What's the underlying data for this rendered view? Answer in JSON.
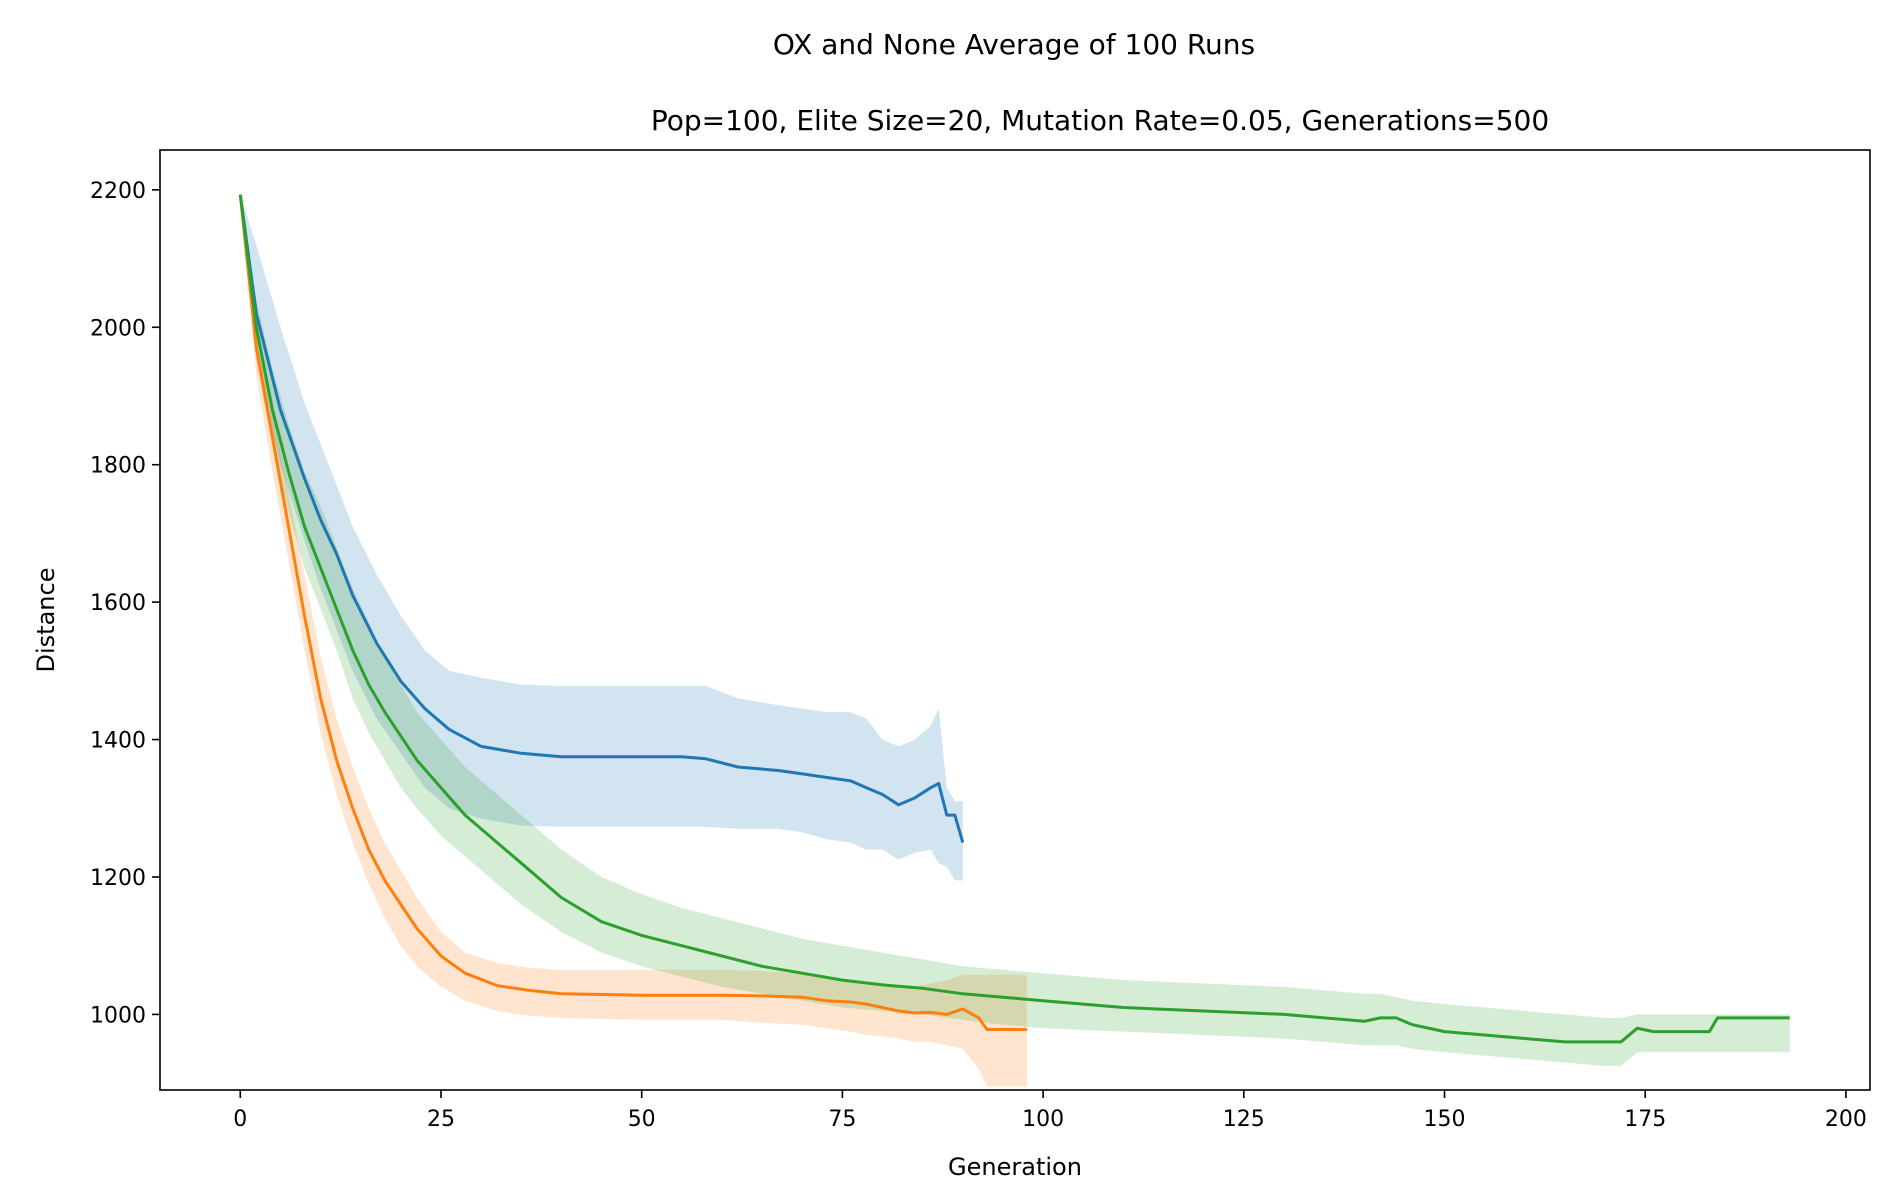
{
  "chart_data": {
    "type": "line",
    "suptitle": "OX and None Average of 100 Runs",
    "title": "Pop=100, Elite Size=20, Mutation Rate=0.05, Generations=500",
    "xlabel": "Generation",
    "ylabel": "Distance",
    "xlim": [
      -10,
      203
    ],
    "ylim": [
      890,
      2258
    ],
    "xticks": [
      0,
      25,
      50,
      75,
      100,
      125,
      150,
      175,
      200
    ],
    "yticks": [
      1000,
      1200,
      1400,
      1600,
      1800,
      2000,
      2200
    ],
    "grid": false,
    "legend": "none",
    "series": [
      {
        "color": "#1f77b4",
        "x": [
          0,
          2,
          5,
          8,
          10,
          12,
          14,
          17,
          20,
          23,
          26,
          30,
          35,
          40,
          45,
          50,
          55,
          58,
          62,
          67,
          70,
          73,
          76,
          78,
          80,
          82,
          84,
          86,
          87,
          88,
          89,
          90
        ],
        "y": [
          2193,
          2020,
          1880,
          1780,
          1720,
          1670,
          1610,
          1540,
          1485,
          1445,
          1415,
          1390,
          1380,
          1375,
          1375,
          1375,
          1375,
          1372,
          1360,
          1355,
          1350,
          1345,
          1340,
          1330,
          1320,
          1305,
          1315,
          1330,
          1336,
          1290,
          1290,
          1250
        ],
        "band_upper": [
          2193,
          2120,
          2000,
          1890,
          1830,
          1770,
          1710,
          1640,
          1580,
          1530,
          1500,
          1490,
          1480,
          1478,
          1478,
          1478,
          1478,
          1478,
          1460,
          1450,
          1445,
          1440,
          1440,
          1430,
          1400,
          1390,
          1400,
          1420,
          1445,
          1330,
          1310,
          1310
        ],
        "band_lower": [
          2193,
          1950,
          1800,
          1690,
          1620,
          1560,
          1500,
          1430,
          1380,
          1330,
          1300,
          1285,
          1275,
          1273,
          1273,
          1273,
          1273,
          1273,
          1270,
          1270,
          1265,
          1255,
          1250,
          1240,
          1240,
          1225,
          1235,
          1240,
          1220,
          1215,
          1195,
          1195
        ]
      },
      {
        "color": "#ff7f0e",
        "x": [
          0,
          2,
          4,
          6,
          8,
          10,
          12,
          14,
          16,
          18,
          20,
          22,
          25,
          28,
          32,
          36,
          40,
          50,
          60,
          65,
          70,
          73,
          76,
          78,
          80,
          82,
          84,
          86,
          88,
          90,
          92,
          93,
          98
        ],
        "y": [
          2193,
          1970,
          1840,
          1710,
          1580,
          1460,
          1370,
          1300,
          1240,
          1195,
          1160,
          1125,
          1085,
          1060,
          1042,
          1035,
          1030,
          1028,
          1028,
          1027,
          1025,
          1020,
          1018,
          1015,
          1010,
          1005,
          1002,
          1003,
          1000,
          1008,
          995,
          978,
          978
        ],
        "band_upper": [
          2193,
          2000,
          1880,
          1760,
          1640,
          1520,
          1430,
          1360,
          1300,
          1250,
          1210,
          1170,
          1120,
          1090,
          1075,
          1068,
          1065,
          1065,
          1065,
          1063,
          1060,
          1055,
          1050,
          1048,
          1045,
          1040,
          1040,
          1045,
          1050,
          1058,
          1058,
          1058,
          1058
        ],
        "band_lower": [
          2193,
          1930,
          1790,
          1660,
          1530,
          1410,
          1320,
          1250,
          1190,
          1140,
          1100,
          1070,
          1040,
          1020,
          1005,
          998,
          995,
          992,
          992,
          988,
          985,
          980,
          975,
          970,
          968,
          965,
          960,
          960,
          955,
          950,
          920,
          895,
          895
        ]
      },
      {
        "color": "#2ca02c",
        "x": [
          0,
          2,
          4,
          6,
          8,
          10,
          12,
          14,
          16,
          18,
          20,
          22,
          25,
          28,
          32,
          35,
          40,
          45,
          50,
          55,
          60,
          65,
          70,
          75,
          80,
          85,
          90,
          95,
          100,
          110,
          120,
          130,
          140,
          142,
          144,
          146,
          150,
          155,
          160,
          165,
          170,
          172,
          174,
          176,
          180,
          183,
          184,
          193
        ],
        "y": [
          2193,
          2000,
          1880,
          1790,
          1710,
          1650,
          1590,
          1530,
          1480,
          1440,
          1405,
          1370,
          1330,
          1290,
          1250,
          1220,
          1170,
          1135,
          1115,
          1100,
          1085,
          1070,
          1060,
          1050,
          1043,
          1038,
          1030,
          1025,
          1020,
          1010,
          1005,
          1000,
          990,
          995,
          995,
          985,
          975,
          970,
          965,
          960,
          960,
          960,
          980,
          975,
          975,
          975,
          995,
          995
        ],
        "band_upper": [
          2193,
          2040,
          1940,
          1860,
          1790,
          1740,
          1680,
          1620,
          1570,
          1520,
          1480,
          1440,
          1400,
          1360,
          1320,
          1290,
          1240,
          1200,
          1175,
          1155,
          1140,
          1125,
          1110,
          1100,
          1090,
          1080,
          1070,
          1065,
          1060,
          1050,
          1045,
          1040,
          1030,
          1030,
          1025,
          1020,
          1015,
          1010,
          1005,
          1000,
          995,
          995,
          1000,
          1000,
          1000,
          1000,
          1000,
          1000
        ],
        "band_lower": [
          2193,
          1960,
          1830,
          1730,
          1650,
          1590,
          1530,
          1460,
          1410,
          1370,
          1330,
          1300,
          1260,
          1230,
          1190,
          1160,
          1120,
          1090,
          1070,
          1055,
          1040,
          1030,
          1020,
          1010,
          1005,
          1000,
          992,
          985,
          980,
          975,
          970,
          965,
          955,
          955,
          955,
          950,
          945,
          940,
          935,
          930,
          925,
          925,
          945,
          945,
          945,
          945,
          945,
          945
        ]
      }
    ]
  }
}
